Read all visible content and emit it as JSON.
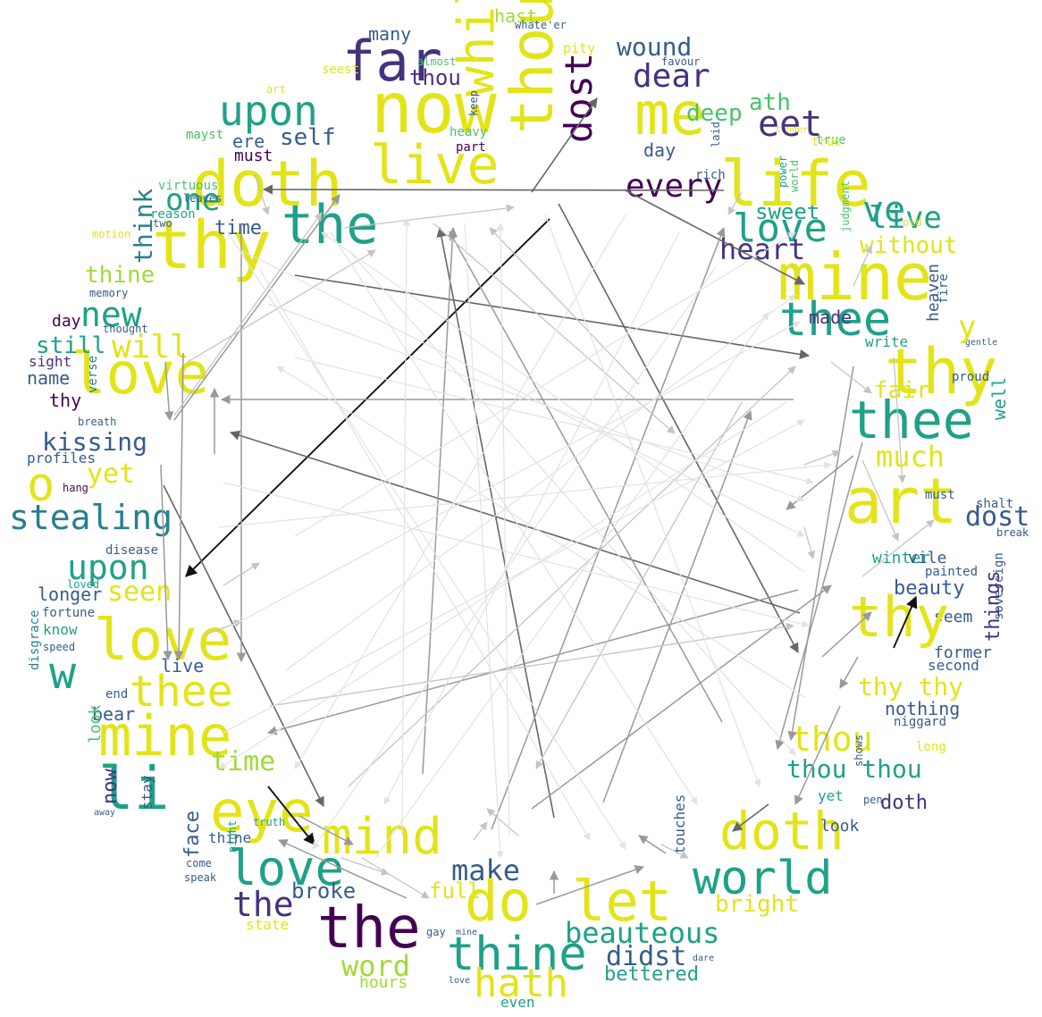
{
  "colors": {
    "yellow": "#e2e418",
    "lime": "#a0da39",
    "green": "#4ac16d",
    "teal": "#1fa187",
    "cyan": "#277f8e",
    "blue": "#365c8d",
    "indigo": "#46327e",
    "purple": "#440154",
    "background": "#ffffff"
  },
  "words": [
    {
      "id": "w1",
      "text": "far",
      "c": "indigo"
    },
    {
      "id": "w2",
      "text": "now",
      "c": "yellow"
    },
    {
      "id": "w3",
      "text": "whilst",
      "c": "yellow"
    },
    {
      "id": "w4",
      "text": "though",
      "c": "yellow"
    },
    {
      "id": "w5",
      "text": "dost",
      "c": "purple"
    },
    {
      "id": "w6",
      "text": "wound",
      "c": "blue"
    },
    {
      "id": "w7",
      "text": "dear",
      "c": "indigo"
    },
    {
      "id": "w8",
      "text": "me",
      "c": "yellow"
    },
    {
      "id": "w9",
      "text": "thou",
      "c": "indigo"
    },
    {
      "id": "w10",
      "text": "many",
      "c": "blue"
    },
    {
      "id": "w11",
      "text": "hast",
      "c": "lime"
    },
    {
      "id": "w12",
      "text": "pity",
      "c": "yellow"
    },
    {
      "id": "w13",
      "text": "upon",
      "c": "teal"
    },
    {
      "id": "w14",
      "text": "doth",
      "c": "yellow"
    },
    {
      "id": "w15",
      "text": "live",
      "c": "yellow"
    },
    {
      "id": "w16",
      "text": "self",
      "c": "blue"
    },
    {
      "id": "w17",
      "text": "ere",
      "c": "blue"
    },
    {
      "id": "w18",
      "text": "must",
      "c": "purple"
    },
    {
      "id": "w19",
      "text": "sweet",
      "c": "teal"
    },
    {
      "id": "w20",
      "text": "ath",
      "c": "green"
    },
    {
      "id": "w21",
      "text": "deep",
      "c": "green"
    },
    {
      "id": "w22",
      "text": "life",
      "c": "yellow"
    },
    {
      "id": "w23",
      "text": "every",
      "c": "purple"
    },
    {
      "id": "w24",
      "text": "day",
      "c": "blue"
    },
    {
      "id": "w25",
      "text": "thy",
      "c": "yellow"
    },
    {
      "id": "w26",
      "text": "one",
      "c": "teal"
    },
    {
      "id": "w27",
      "text": "think",
      "c": "cyan"
    },
    {
      "id": "w28",
      "text": "time",
      "c": "blue"
    },
    {
      "id": "w29",
      "text": "the",
      "c": "teal"
    },
    {
      "id": "w30",
      "text": "thine",
      "c": "lime"
    },
    {
      "id": "w31",
      "text": "love",
      "c": "teal"
    },
    {
      "id": "w32",
      "text": "heart",
      "c": "indigo"
    },
    {
      "id": "w33",
      "text": "live",
      "c": "teal"
    },
    {
      "id": "w34",
      "text": "without",
      "c": "yellow"
    },
    {
      "id": "w35",
      "text": "mine",
      "c": "yellow"
    },
    {
      "id": "w36",
      "text": "thee",
      "c": "teal"
    },
    {
      "id": "w37",
      "text": "new",
      "c": "teal"
    },
    {
      "id": "w38",
      "text": "will",
      "c": "yellow"
    },
    {
      "id": "w39",
      "text": "love",
      "c": "yellow"
    },
    {
      "id": "w40",
      "text": "still",
      "c": "teal"
    },
    {
      "id": "w41",
      "text": "name",
      "c": "blue"
    },
    {
      "id": "w42",
      "text": "sight",
      "c": "indigo"
    },
    {
      "id": "w43",
      "text": "day",
      "c": "purple"
    },
    {
      "id": "w44",
      "text": "made",
      "c": "indigo"
    },
    {
      "id": "w45",
      "text": "thy",
      "c": "yellow"
    },
    {
      "id": "w46",
      "text": "fair",
      "c": "yellow"
    },
    {
      "id": "w47",
      "text": "thee",
      "c": "teal"
    },
    {
      "id": "w48",
      "text": "much",
      "c": "yellow"
    },
    {
      "id": "w49",
      "text": "kissing",
      "c": "blue"
    },
    {
      "id": "w50",
      "text": "profiles",
      "c": "blue"
    },
    {
      "id": "w51",
      "text": "o",
      "c": "yellow"
    },
    {
      "id": "w52",
      "text": "yet",
      "c": "yellow"
    },
    {
      "id": "w53",
      "text": "stealing",
      "c": "cyan"
    },
    {
      "id": "w54",
      "text": "art",
      "c": "yellow"
    },
    {
      "id": "w55",
      "text": "dost",
      "c": "blue"
    },
    {
      "id": "w56",
      "text": "upon",
      "c": "teal"
    },
    {
      "id": "w57",
      "text": "seen",
      "c": "yellow"
    },
    {
      "id": "w58",
      "text": "longer",
      "c": "blue"
    },
    {
      "id": "w59",
      "text": "love",
      "c": "yellow"
    },
    {
      "id": "w60",
      "text": "w",
      "c": "teal"
    },
    {
      "id": "w61",
      "text": "live",
      "c": "blue"
    },
    {
      "id": "w62",
      "text": "thee",
      "c": "yellow"
    },
    {
      "id": "w63",
      "text": "beauty",
      "c": "blue"
    },
    {
      "id": "w64",
      "text": "seem",
      "c": "blue"
    },
    {
      "id": "w65",
      "text": "thy",
      "c": "yellow"
    },
    {
      "id": "w66",
      "text": "former",
      "c": "blue"
    },
    {
      "id": "w67",
      "text": "second",
      "c": "blue"
    },
    {
      "id": "w68",
      "text": "thy thy",
      "c": "yellow"
    },
    {
      "id": "w69",
      "text": "nothing",
      "c": "blue"
    },
    {
      "id": "w70",
      "text": "mine",
      "c": "yellow"
    },
    {
      "id": "w71",
      "text": "bear",
      "c": "blue"
    },
    {
      "id": "w72",
      "text": "li",
      "c": "teal"
    },
    {
      "id": "w73",
      "text": "thou",
      "c": "yellow"
    },
    {
      "id": "w74",
      "text": "thou thou",
      "c": "teal"
    },
    {
      "id": "w75",
      "text": "doth",
      "c": "indigo"
    },
    {
      "id": "w76",
      "text": "eye",
      "c": "yellow"
    },
    {
      "id": "w77",
      "text": "love",
      "c": "teal"
    },
    {
      "id": "w78",
      "text": "mind",
      "c": "yellow"
    },
    {
      "id": "w79",
      "text": "doth",
      "c": "yellow"
    },
    {
      "id": "w80",
      "text": "world",
      "c": "teal"
    },
    {
      "id": "w81",
      "text": "bright",
      "c": "yellow"
    },
    {
      "id": "w82",
      "text": "look",
      "c": "blue"
    },
    {
      "id": "w83",
      "text": "the",
      "c": "indigo"
    },
    {
      "id": "w84",
      "text": "the",
      "c": "purple"
    },
    {
      "id": "w85",
      "text": "broke",
      "c": "blue"
    },
    {
      "id": "w86",
      "text": "thine",
      "c": "blue"
    },
    {
      "id": "w87",
      "text": "full",
      "c": "yellow"
    },
    {
      "id": "w88",
      "text": "make",
      "c": "blue"
    },
    {
      "id": "w89",
      "text": "let",
      "c": "yellow"
    },
    {
      "id": "w90",
      "text": "beauteous",
      "c": "teal"
    },
    {
      "id": "w91",
      "text": "didst",
      "c": "blue"
    },
    {
      "id": "w92",
      "text": "thine",
      "c": "teal"
    },
    {
      "id": "w93",
      "text": "word",
      "c": "lime"
    },
    {
      "id": "w94",
      "text": "hath",
      "c": "yellow"
    },
    {
      "id": "w95",
      "text": "bettered",
      "c": "teal"
    },
    {
      "id": "w96",
      "text": "hours",
      "c": "lime"
    },
    {
      "id": "w97",
      "text": "even",
      "c": "teal"
    },
    {
      "id": "w98",
      "text": "thy",
      "c": "purple"
    },
    {
      "id": "w99",
      "text": "do",
      "c": "yellow"
    },
    {
      "id": "w100",
      "text": "face",
      "c": "blue"
    },
    {
      "id": "w101",
      "text": "time",
      "c": "lime"
    },
    {
      "id": "w102",
      "text": "now",
      "c": "indigo"
    },
    {
      "id": "w103",
      "text": "look",
      "c": "green"
    },
    {
      "id": "w104",
      "text": "disgrace",
      "c": "cyan"
    },
    {
      "id": "w105",
      "text": "know",
      "c": "teal"
    },
    {
      "id": "w106",
      "text": "heaven",
      "c": "blue"
    },
    {
      "id": "w107",
      "text": "well",
      "c": "teal"
    },
    {
      "id": "w108",
      "text": "world",
      "c": "green"
    },
    {
      "id": "w109",
      "text": "power",
      "c": "teal"
    },
    {
      "id": "w110",
      "text": "judgment",
      "c": "green"
    },
    {
      "id": "w111",
      "text": "true",
      "c": "green"
    },
    {
      "id": "w112",
      "text": "almost",
      "c": "green"
    },
    {
      "id": "w113",
      "text": "favour",
      "c": "blue"
    },
    {
      "id": "w114",
      "text": "virtuous",
      "c": "green"
    },
    {
      "id": "w115",
      "text": "reason",
      "c": "teal"
    },
    {
      "id": "w116",
      "text": "memory",
      "c": "blue"
    },
    {
      "id": "w117",
      "text": "thought",
      "c": "blue"
    },
    {
      "id": "w118",
      "text": "verse",
      "c": "cyan"
    },
    {
      "id": "w119",
      "text": "breath",
      "c": "blue"
    },
    {
      "id": "w120",
      "text": "hang",
      "c": "purple"
    },
    {
      "id": "w121",
      "text": "disease",
      "c": "blue"
    },
    {
      "id": "w122",
      "text": "loved",
      "c": "teal"
    },
    {
      "id": "w123",
      "text": "fortune",
      "c": "blue"
    },
    {
      "id": "w124",
      "text": "speed",
      "c": "blue"
    },
    {
      "id": "w125",
      "text": "end",
      "c": "blue"
    },
    {
      "id": "w126",
      "text": "stay",
      "c": "blue"
    },
    {
      "id": "w127",
      "text": "away",
      "c": "blue"
    },
    {
      "id": "w128",
      "text": "come",
      "c": "blue"
    },
    {
      "id": "w129",
      "text": "speak",
      "c": "blue"
    },
    {
      "id": "w130",
      "text": "truth",
      "c": "teal"
    },
    {
      "id": "w131",
      "text": "night",
      "c": "teal"
    },
    {
      "id": "w132",
      "text": "state",
      "c": "yellow"
    },
    {
      "id": "w133",
      "text": "gay",
      "c": "blue"
    },
    {
      "id": "w134",
      "text": "mine",
      "c": "blue"
    },
    {
      "id": "w135",
      "text": "love",
      "c": "blue"
    },
    {
      "id": "w136",
      "text": "dare",
      "c": "blue"
    },
    {
      "id": "w137",
      "text": "touches",
      "c": "blue"
    },
    {
      "id": "w138",
      "text": "yet",
      "c": "teal"
    },
    {
      "id": "w139",
      "text": "pen",
      "c": "blue"
    },
    {
      "id": "w140",
      "text": "shows",
      "c": "blue"
    },
    {
      "id": "w141",
      "text": "long",
      "c": "yellow"
    },
    {
      "id": "w142",
      "text": "niggard",
      "c": "blue"
    },
    {
      "id": "w143",
      "text": "sovereign",
      "c": "blue"
    },
    {
      "id": "w144",
      "text": "things",
      "c": "indigo"
    },
    {
      "id": "w145",
      "text": "break",
      "c": "blue"
    },
    {
      "id": "w146",
      "text": "shalt",
      "c": "blue"
    },
    {
      "id": "w147",
      "text": "must",
      "c": "blue"
    },
    {
      "id": "w148",
      "text": "gentle",
      "c": "blue"
    },
    {
      "id": "w149",
      "text": "proud",
      "c": "blue"
    },
    {
      "id": "w150",
      "text": "fire",
      "c": "blue"
    },
    {
      "id": "w151",
      "text": "old",
      "c": "yellow"
    },
    {
      "id": "w152",
      "text": "tender",
      "c": "yellow"
    },
    {
      "id": "w153",
      "text": "true",
      "c": "yellow"
    },
    {
      "id": "w154",
      "text": "rich",
      "c": "blue"
    },
    {
      "id": "w155",
      "text": "laid",
      "c": "blue"
    },
    {
      "id": "w156",
      "text": "heavy",
      "c": "green"
    },
    {
      "id": "w157",
      "text": "part",
      "c": "purple"
    },
    {
      "id": "w158",
      "text": "keep",
      "c": "blue"
    },
    {
      "id": "w159",
      "text": "seest",
      "c": "yellow"
    },
    {
      "id": "w160",
      "text": "art",
      "c": "yellow"
    },
    {
      "id": "w161",
      "text": "leaves",
      "c": "blue"
    },
    {
      "id": "w162",
      "text": "mayst",
      "c": "green"
    },
    {
      "id": "w163",
      "text": "motion",
      "c": "yellow"
    },
    {
      "id": "w164",
      "text": "two",
      "c": "blue"
    },
    {
      "id": "w165",
      "text": "whate'er",
      "c": "blue"
    },
    {
      "id": "w166",
      "text": "write",
      "c": "teal"
    },
    {
      "id": "w167",
      "text": "painted",
      "c": "blue"
    },
    {
      "id": "w168",
      "text": "winter",
      "c": "teal"
    },
    {
      "id": "w169",
      "text": "vile",
      "c": "blue"
    },
    {
      "id": "w170",
      "text": "y",
      "c": "yellow"
    },
    {
      "id": "w171",
      "text": "eet",
      "c": "indigo"
    },
    {
      "id": "w172",
      "text": "ve",
      "c": "teal"
    }
  ]
}
